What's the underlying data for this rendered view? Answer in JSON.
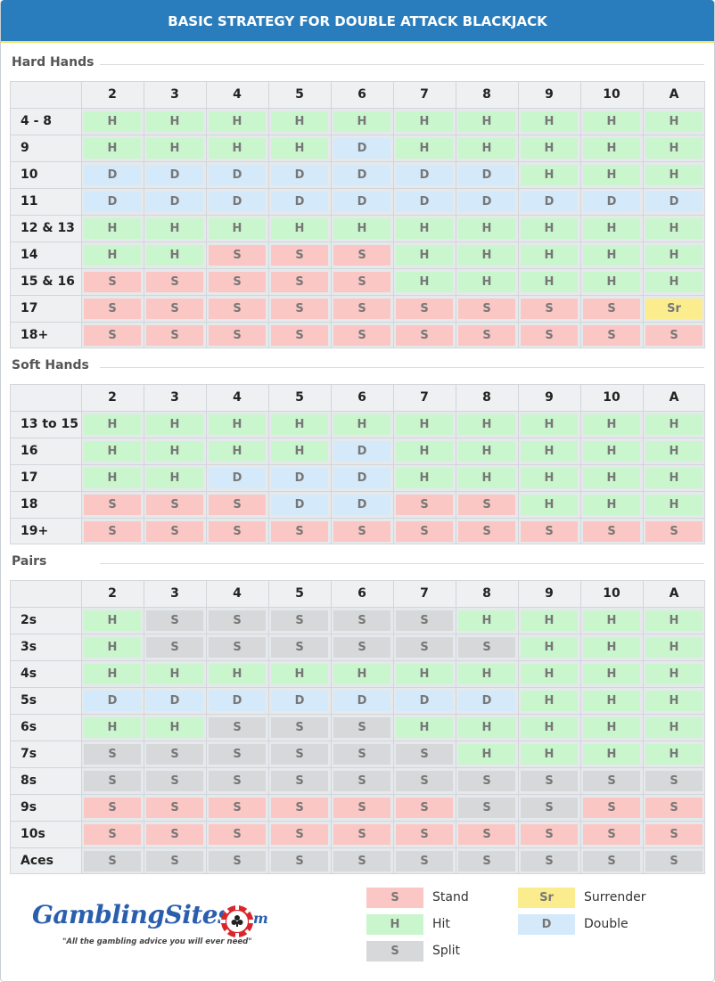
{
  "title": "BASIC STRATEGY FOR DOUBLE ATTACK BLACKJACK",
  "dealer_cards": [
    "2",
    "3",
    "4",
    "5",
    "6",
    "7",
    "8",
    "9",
    "10",
    "A"
  ],
  "sections": [
    {
      "title": "Hard Hands",
      "rows": [
        {
          "label": "4 - 8",
          "cells": [
            "H",
            "H",
            "H",
            "H",
            "H",
            "H",
            "H",
            "H",
            "H",
            "H"
          ]
        },
        {
          "label": "9",
          "cells": [
            "H",
            "H",
            "H",
            "H",
            "D",
            "H",
            "H",
            "H",
            "H",
            "H"
          ]
        },
        {
          "label": "10",
          "cells": [
            "D",
            "D",
            "D",
            "D",
            "D",
            "D",
            "D",
            "H",
            "H",
            "H"
          ]
        },
        {
          "label": "11",
          "cells": [
            "D",
            "D",
            "D",
            "D",
            "D",
            "D",
            "D",
            "D",
            "D",
            "D"
          ]
        },
        {
          "label": "12 & 13",
          "cells": [
            "H",
            "H",
            "H",
            "H",
            "H",
            "H",
            "H",
            "H",
            "H",
            "H"
          ]
        },
        {
          "label": "14",
          "cells": [
            "H",
            "H",
            "S",
            "S",
            "S",
            "H",
            "H",
            "H",
            "H",
            "H"
          ]
        },
        {
          "label": "15 & 16",
          "cells": [
            "S",
            "S",
            "S",
            "S",
            "S",
            "H",
            "H",
            "H",
            "H",
            "H"
          ]
        },
        {
          "label": "17",
          "cells": [
            "S",
            "S",
            "S",
            "S",
            "S",
            "S",
            "S",
            "S",
            "S",
            "Sr"
          ]
        },
        {
          "label": "18+",
          "cells": [
            "S",
            "S",
            "S",
            "S",
            "S",
            "S",
            "S",
            "S",
            "S",
            "S"
          ]
        }
      ]
    },
    {
      "title": "Soft Hands",
      "rows": [
        {
          "label": "13 to 15",
          "cells": [
            "H",
            "H",
            "H",
            "H",
            "H",
            "H",
            "H",
            "H",
            "H",
            "H"
          ]
        },
        {
          "label": "16",
          "cells": [
            "H",
            "H",
            "H",
            "H",
            "D",
            "H",
            "H",
            "H",
            "H",
            "H"
          ]
        },
        {
          "label": "17",
          "cells": [
            "H",
            "H",
            "D",
            "D",
            "D",
            "H",
            "H",
            "H",
            "H",
            "H"
          ]
        },
        {
          "label": "18",
          "cells": [
            "S",
            "S",
            "S",
            "D",
            "D",
            "S",
            "S",
            "H",
            "H",
            "H"
          ]
        },
        {
          "label": "19+",
          "cells": [
            "S",
            "S",
            "S",
            "S",
            "S",
            "S",
            "S",
            "S",
            "S",
            "S"
          ]
        }
      ]
    },
    {
      "title": "Pairs",
      "rows": [
        {
          "label": "2s",
          "cells": [
            "H",
            "P",
            "P",
            "P",
            "P",
            "P",
            "H",
            "H",
            "H",
            "H"
          ]
        },
        {
          "label": "3s",
          "cells": [
            "H",
            "P",
            "P",
            "P",
            "P",
            "P",
            "P",
            "H",
            "H",
            "H"
          ]
        },
        {
          "label": "4s",
          "cells": [
            "H",
            "H",
            "H",
            "H",
            "H",
            "H",
            "H",
            "H",
            "H",
            "H"
          ]
        },
        {
          "label": "5s",
          "cells": [
            "D",
            "D",
            "D",
            "D",
            "D",
            "D",
            "D",
            "H",
            "H",
            "H"
          ]
        },
        {
          "label": "6s",
          "cells": [
            "H",
            "H",
            "P",
            "P",
            "P",
            "H",
            "H",
            "H",
            "H",
            "H"
          ]
        },
        {
          "label": "7s",
          "cells": [
            "P",
            "P",
            "P",
            "P",
            "P",
            "P",
            "H",
            "H",
            "H",
            "H"
          ]
        },
        {
          "label": "8s",
          "cells": [
            "P",
            "P",
            "P",
            "P",
            "P",
            "P",
            "P",
            "P",
            "P",
            "P"
          ]
        },
        {
          "label": "9s",
          "cells": [
            "S",
            "S",
            "S",
            "S",
            "S",
            "S",
            "P",
            "P",
            "S",
            "S"
          ]
        },
        {
          "label": "10s",
          "cells": [
            "S",
            "S",
            "S",
            "S",
            "S",
            "S",
            "S",
            "S",
            "S",
            "S"
          ]
        },
        {
          "label": "Aces",
          "cells": [
            "P",
            "P",
            "P",
            "P",
            "P",
            "P",
            "P",
            "P",
            "P",
            "P"
          ]
        }
      ]
    }
  ],
  "codes": {
    "H": {
      "text": "H",
      "color": "#c9f6cd"
    },
    "S": {
      "text": "S",
      "color": "#fbc7c4"
    },
    "D": {
      "text": "D",
      "color": "#d4e9fa"
    },
    "Sr": {
      "text": "Sr",
      "color": "#fbed8e"
    },
    "P": {
      "text": "S",
      "color": "#d6d8da"
    }
  },
  "legend": [
    {
      "code": "S",
      "text": "S",
      "label": "Stand"
    },
    {
      "code": "H",
      "text": "H",
      "label": "Hit"
    },
    {
      "code": "P",
      "text": "S",
      "label": "Split"
    },
    {
      "code": "Sr",
      "text": "Sr",
      "label": "Surrender"
    },
    {
      "code": "D",
      "text": "D",
      "label": "Double"
    }
  ],
  "logo": {
    "name": "GamblingSites",
    "suffix": ".com",
    "tagline": "\"All the gambling advice you will ever need\""
  }
}
